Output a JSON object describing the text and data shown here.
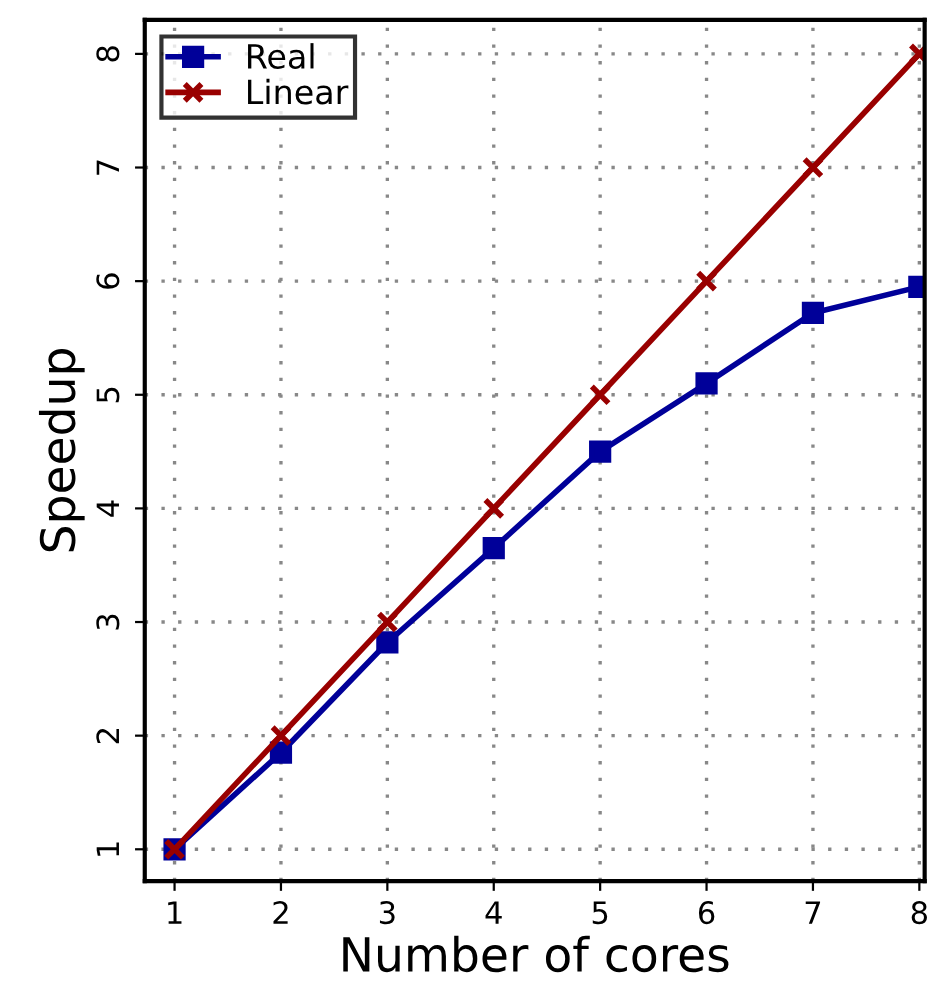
{
  "chart_data": {
    "type": "line",
    "xlabel": "Number of cores",
    "ylabel": "Speedup",
    "x": [
      1,
      2,
      3,
      4,
      5,
      6,
      7,
      8
    ],
    "series": [
      {
        "name": "Real",
        "color": "#000099",
        "marker": "square",
        "values": [
          1,
          1.85,
          2.82,
          3.65,
          4.5,
          5.1,
          5.72,
          5.95
        ]
      },
      {
        "name": "Linear",
        "color": "#990000",
        "marker": "cross",
        "values": [
          1,
          2,
          3,
          4,
          5,
          6,
          7,
          8
        ]
      }
    ],
    "xlim": [
      0.72,
      8.05
    ],
    "ylim": [
      0.72,
      8.3
    ],
    "xticks": [
      1,
      2,
      3,
      4,
      5,
      6,
      7,
      8
    ],
    "yticks": [
      1,
      2,
      3,
      4,
      5,
      6,
      7,
      8
    ],
    "grid": true,
    "legend": "top left",
    "line_style": "solid"
  }
}
